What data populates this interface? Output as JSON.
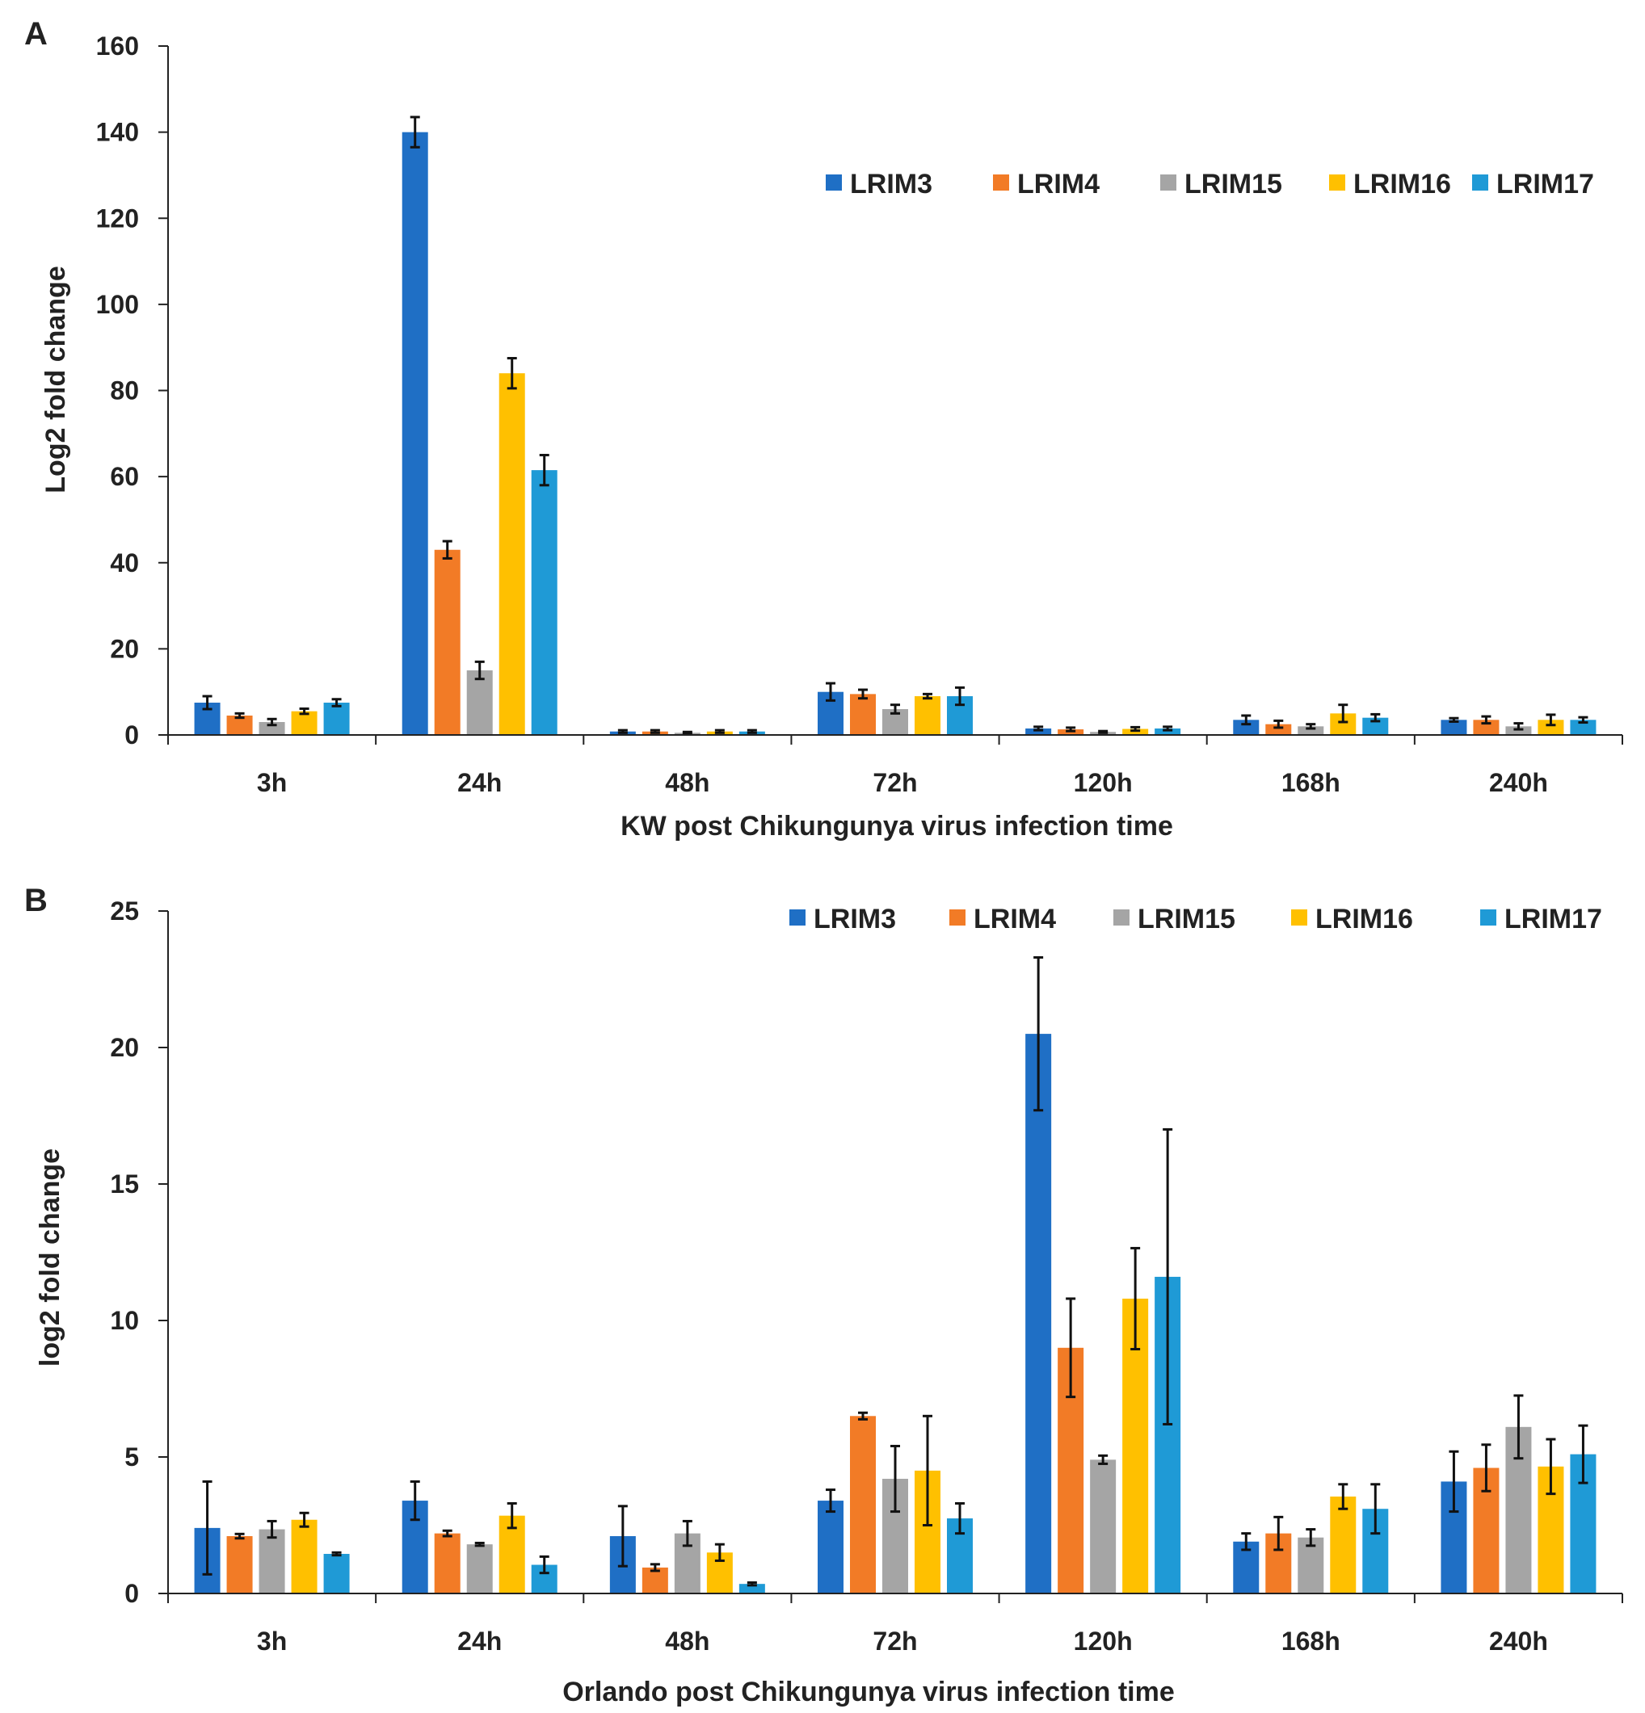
{
  "chart_data": [
    {
      "type": "bar",
      "panel_label": "A",
      "categories": [
        "3h",
        "24h",
        "48h",
        "72h",
        "120h",
        "168h",
        "240h"
      ],
      "series": [
        {
          "name": "LRIM3",
          "color": "#1F6FC5",
          "values": [
            7.5,
            140,
            0.8,
            10,
            1.5,
            3.5,
            3.5
          ],
          "errors": [
            1.5,
            3.5,
            0.3,
            2,
            0.4,
            1,
            0.4
          ]
        },
        {
          "name": "LRIM4",
          "color": "#F27B26",
          "values": [
            4.5,
            43,
            0.8,
            9.5,
            1.3,
            2.5,
            3.5
          ],
          "errors": [
            0.5,
            2,
            0.3,
            1,
            0.4,
            0.8,
            0.8
          ]
        },
        {
          "name": "LRIM15",
          "color": "#A5A5A5",
          "values": [
            3,
            15,
            0.5,
            6,
            0.7,
            2,
            2
          ],
          "errors": [
            0.7,
            2,
            0.2,
            1,
            0.2,
            0.5,
            0.7
          ]
        },
        {
          "name": "LRIM16",
          "color": "#FFC000",
          "values": [
            5.5,
            84,
            0.8,
            9,
            1.4,
            5,
            3.5
          ],
          "errors": [
            0.6,
            3.5,
            0.3,
            0.5,
            0.4,
            2,
            1.2
          ]
        },
        {
          "name": "LRIM17",
          "color": "#1F9AD6",
          "values": [
            7.5,
            61.5,
            0.8,
            9,
            1.5,
            4,
            3.5
          ],
          "errors": [
            0.8,
            3.5,
            0.3,
            2,
            0.4,
            0.8,
            0.6
          ]
        }
      ],
      "ylim": [
        0,
        160
      ],
      "yticks": [
        "0",
        "20",
        "40",
        "60",
        "80",
        "100",
        "120",
        "140",
        "160"
      ],
      "ylabel": "Log2 fold change",
      "xlabel": "KW post Chikungunya virus infection time",
      "legend": "top-right"
    },
    {
      "type": "bar",
      "panel_label": "B",
      "categories": [
        "3h",
        "24h",
        "48h",
        "72h",
        "120h",
        "168h",
        "240h"
      ],
      "series": [
        {
          "name": "LRIM3",
          "color": "#1F6FC5",
          "values": [
            2.4,
            3.4,
            2.1,
            3.4,
            20.5,
            1.9,
            4.1
          ],
          "errors": [
            1.7,
            0.7,
            1.1,
            0.4,
            2.8,
            0.3,
            1.1
          ]
        },
        {
          "name": "LRIM4",
          "color": "#F27B26",
          "values": [
            2.1,
            2.2,
            0.95,
            6.5,
            9,
            2.2,
            4.6
          ],
          "errors": [
            0.08,
            0.1,
            0.12,
            0.12,
            1.8,
            0.6,
            0.85
          ]
        },
        {
          "name": "LRIM15",
          "color": "#A5A5A5",
          "values": [
            2.35,
            1.8,
            2.2,
            4.2,
            4.9,
            2.05,
            6.1
          ],
          "errors": [
            0.3,
            0.05,
            0.45,
            1.2,
            0.15,
            0.3,
            1.15
          ]
        },
        {
          "name": "LRIM16",
          "color": "#FFC000",
          "values": [
            2.7,
            2.85,
            1.5,
            4.5,
            10.8,
            3.55,
            4.65
          ],
          "errors": [
            0.25,
            0.45,
            0.3,
            2,
            1.85,
            0.45,
            1
          ]
        },
        {
          "name": "LRIM17",
          "color": "#1F9AD6",
          "values": [
            1.45,
            1.05,
            0.35,
            2.75,
            11.6,
            3.1,
            5.1
          ],
          "errors": [
            0.05,
            0.3,
            0.05,
            0.55,
            5.4,
            0.9,
            1.05
          ]
        }
      ],
      "ylim": [
        0,
        25
      ],
      "yticks": [
        "0",
        "5",
        "10",
        "15",
        "20",
        "25"
      ],
      "ylabel": "log2 fold change",
      "xlabel": "Orlando post Chikungunya virus infection time",
      "legend": "top-right"
    }
  ]
}
